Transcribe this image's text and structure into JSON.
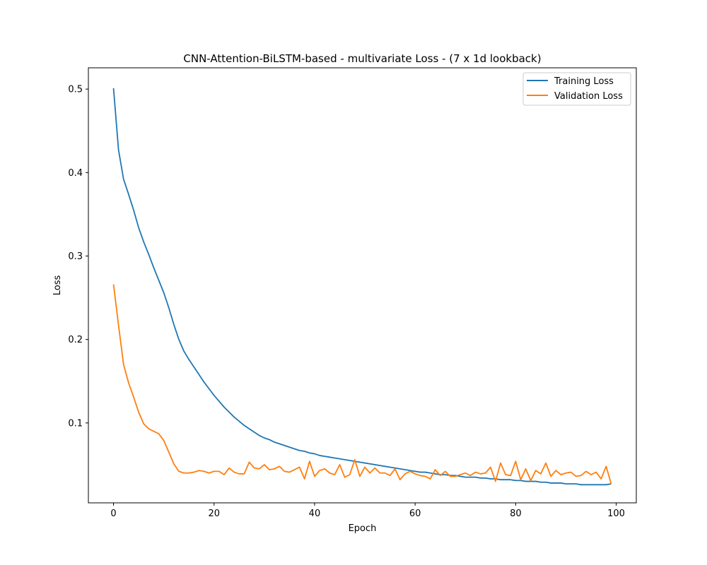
{
  "chart_data": {
    "type": "line",
    "title": "CNN-Attention-BiLSTM-based - multivariate Loss - (7 x 1d lookback)",
    "xlabel": "Epoch",
    "ylabel": "Loss",
    "xlim": [
      -5,
      104
    ],
    "ylim": [
      0.00425,
      0.5255
    ],
    "xticks": [
      0,
      20,
      40,
      60,
      80,
      100
    ],
    "xtick_labels": [
      "0",
      "20",
      "40",
      "60",
      "80",
      "100"
    ],
    "yticks": [
      0.1,
      0.2,
      0.3,
      0.4,
      0.5
    ],
    "ytick_labels": [
      "0.1",
      "0.2",
      "0.3",
      "0.4",
      "0.5"
    ],
    "grid": false,
    "legend_position": "top-right",
    "x": [
      0,
      1,
      2,
      3,
      4,
      5,
      6,
      7,
      8,
      9,
      10,
      11,
      12,
      13,
      14,
      15,
      16,
      17,
      18,
      19,
      20,
      21,
      22,
      23,
      24,
      25,
      26,
      27,
      28,
      29,
      30,
      31,
      32,
      33,
      34,
      35,
      36,
      37,
      38,
      39,
      40,
      41,
      42,
      43,
      44,
      45,
      46,
      47,
      48,
      49,
      50,
      51,
      52,
      53,
      54,
      55,
      56,
      57,
      58,
      59,
      60,
      61,
      62,
      63,
      64,
      65,
      66,
      67,
      68,
      69,
      70,
      71,
      72,
      73,
      74,
      75,
      76,
      77,
      78,
      79,
      80,
      81,
      82,
      83,
      84,
      85,
      86,
      87,
      88,
      89,
      90,
      91,
      92,
      93,
      94,
      95,
      96,
      97,
      98,
      99
    ],
    "series": [
      {
        "name": "Training Loss",
        "color": "#1f77b4",
        "values": [
          0.501,
          0.427,
          0.392,
          0.374,
          0.355,
          0.334,
          0.317,
          0.302,
          0.286,
          0.271,
          0.256,
          0.238,
          0.218,
          0.2,
          0.186,
          0.176,
          0.167,
          0.158,
          0.149,
          0.141,
          0.133,
          0.126,
          0.119,
          0.113,
          0.107,
          0.102,
          0.097,
          0.093,
          0.089,
          0.085,
          0.082,
          0.08,
          0.077,
          0.075,
          0.073,
          0.071,
          0.069,
          0.067,
          0.066,
          0.064,
          0.063,
          0.061,
          0.06,
          0.059,
          0.058,
          0.057,
          0.056,
          0.055,
          0.054,
          0.053,
          0.052,
          0.051,
          0.05,
          0.049,
          0.048,
          0.047,
          0.046,
          0.045,
          0.044,
          0.043,
          0.042,
          0.041,
          0.041,
          0.04,
          0.039,
          0.038,
          0.038,
          0.037,
          0.037,
          0.036,
          0.035,
          0.035,
          0.035,
          0.034,
          0.034,
          0.033,
          0.033,
          0.032,
          0.032,
          0.032,
          0.031,
          0.031,
          0.03,
          0.03,
          0.03,
          0.029,
          0.029,
          0.028,
          0.028,
          0.028,
          0.027,
          0.027,
          0.027,
          0.026,
          0.026,
          0.026,
          0.026,
          0.026,
          0.026,
          0.027
        ]
      },
      {
        "name": "Validation Loss",
        "color": "#ff7f0e",
        "values": [
          0.266,
          0.217,
          0.17,
          0.148,
          0.131,
          0.113,
          0.099,
          0.093,
          0.09,
          0.087,
          0.079,
          0.065,
          0.051,
          0.042,
          0.04,
          0.04,
          0.041,
          0.043,
          0.042,
          0.04,
          0.042,
          0.042,
          0.038,
          0.046,
          0.041,
          0.039,
          0.039,
          0.053,
          0.046,
          0.045,
          0.05,
          0.044,
          0.045,
          0.048,
          0.042,
          0.041,
          0.044,
          0.047,
          0.033,
          0.054,
          0.036,
          0.043,
          0.045,
          0.04,
          0.038,
          0.05,
          0.035,
          0.038,
          0.056,
          0.036,
          0.047,
          0.04,
          0.046,
          0.04,
          0.04,
          0.037,
          0.045,
          0.032,
          0.039,
          0.042,
          0.039,
          0.037,
          0.036,
          0.033,
          0.044,
          0.037,
          0.042,
          0.036,
          0.036,
          0.038,
          0.04,
          0.037,
          0.041,
          0.039,
          0.04,
          0.047,
          0.03,
          0.052,
          0.038,
          0.037,
          0.054,
          0.032,
          0.045,
          0.031,
          0.043,
          0.039,
          0.052,
          0.036,
          0.043,
          0.038,
          0.04,
          0.041,
          0.036,
          0.037,
          0.042,
          0.038,
          0.041,
          0.033,
          0.048,
          0.027
        ]
      }
    ]
  }
}
